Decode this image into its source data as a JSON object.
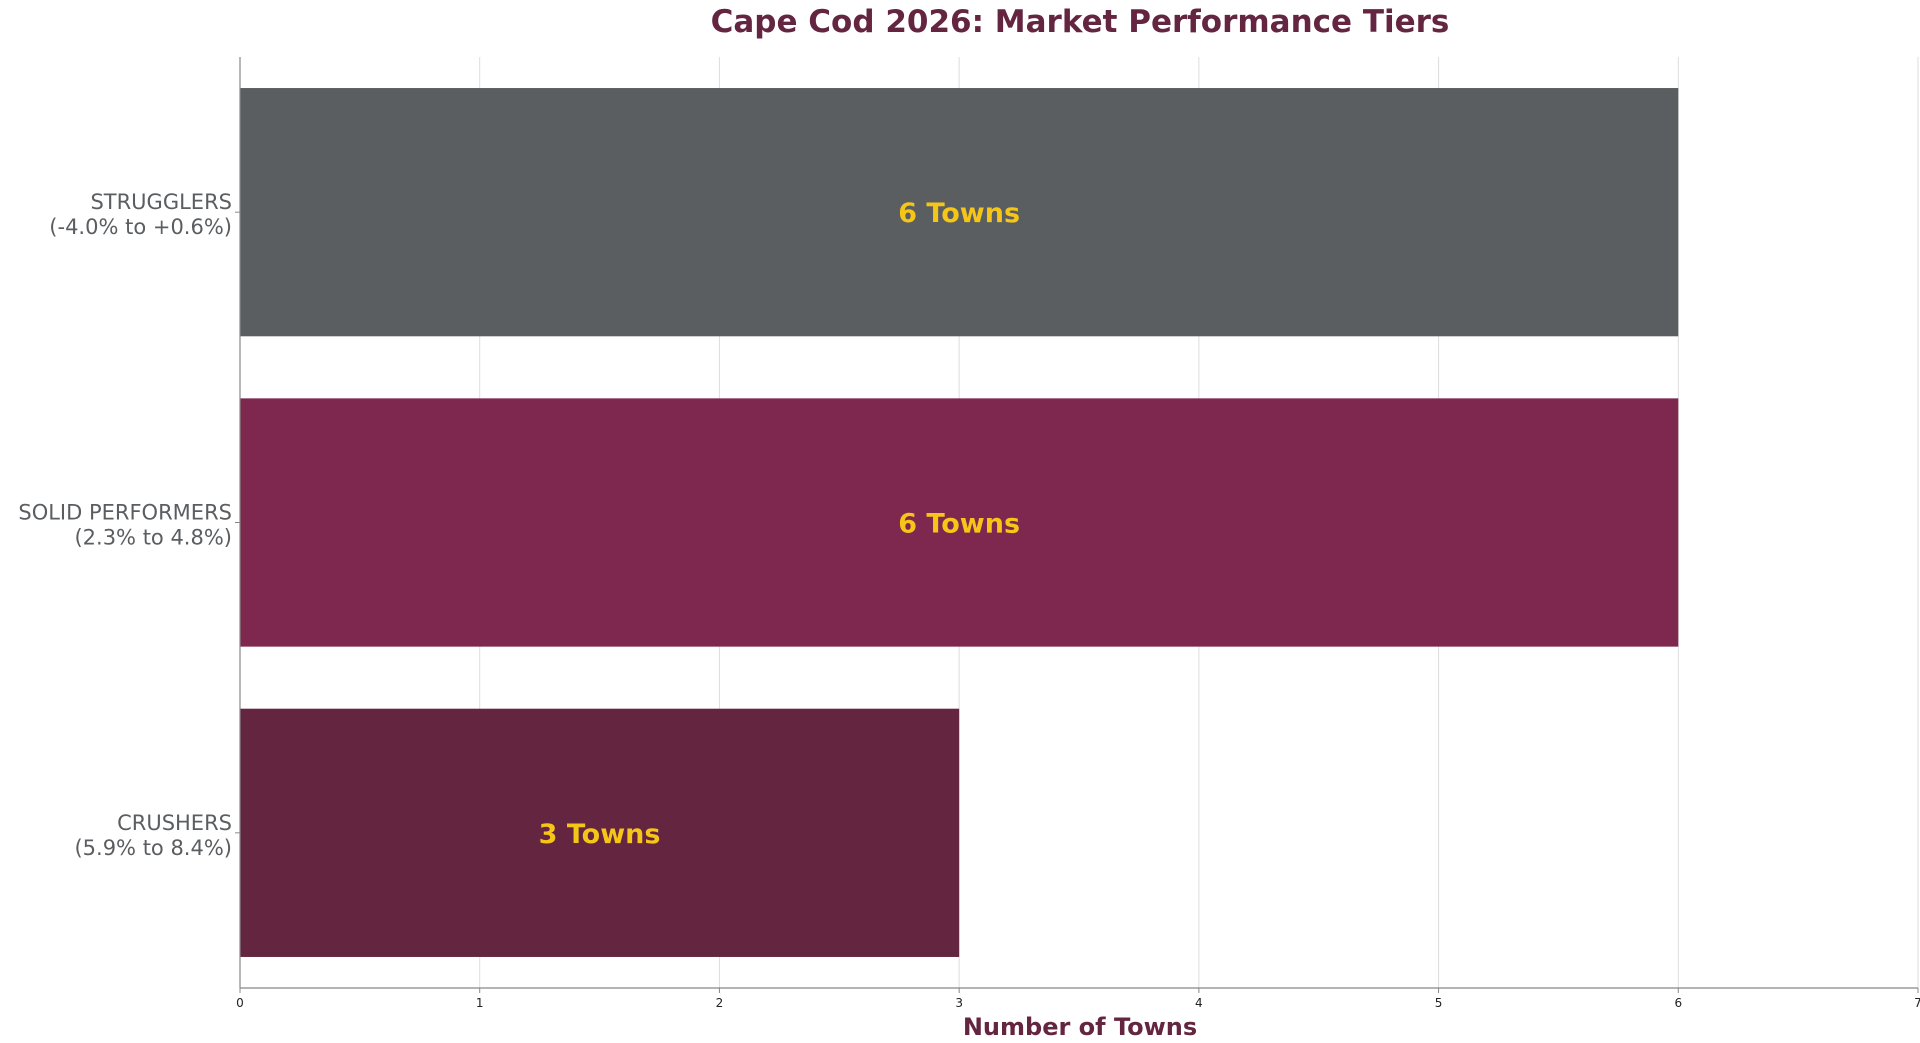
{
  "chart_data": {
    "type": "bar",
    "orientation": "horizontal",
    "title": "Cape Cod 2026: Market Performance Tiers",
    "xlabel": "Number of Towns",
    "ylabel": "",
    "xlim": [
      0,
      7
    ],
    "xticks": [
      "0",
      "1",
      "2",
      "3",
      "4",
      "5",
      "6",
      "7"
    ],
    "grid": "vertical",
    "categories": [
      {
        "name": "CRUSHERS",
        "range": "(5.9% to 8.4%)",
        "value": 3,
        "label": "3 Towns",
        "color": "#63253f"
      },
      {
        "name": "SOLID PERFORMERS",
        "range": "(2.3% to 4.8%)",
        "value": 6,
        "label": "6 Towns",
        "color": "#7e274f"
      },
      {
        "name": "STRUGGLERS",
        "range": "(-4.0% to +0.6%)",
        "value": 6,
        "label": "6 Towns",
        "color": "#5b5e61"
      }
    ]
  },
  "colors": {
    "title": "#63253f",
    "category_text": "#5b5e61",
    "bar_label": "#f5c518",
    "grid": "#dddddd",
    "axis": "#888888"
  }
}
